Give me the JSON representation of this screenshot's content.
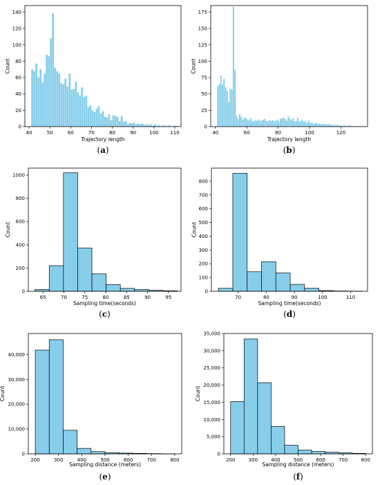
{
  "colors": {
    "bar_fill": "#87CEEB",
    "bar_edge_thin": "#5aaed6",
    "bar_edge": "#000000"
  },
  "chart_data": [
    {
      "id": "a",
      "type": "bar",
      "caption": "(a)",
      "xlabel": "Trajectory length",
      "ylabel": "Count",
      "xlim": [
        38,
        113
      ],
      "ylim": [
        0,
        148
      ],
      "xticks": [
        40,
        50,
        60,
        70,
        80,
        90,
        100,
        110
      ],
      "yticks": [
        0,
        20,
        40,
        60,
        80,
        100,
        120,
        140
      ],
      "bin_start": 41,
      "bin_width": 1,
      "values": [
        70,
        68,
        77,
        60,
        70,
        54,
        65,
        88,
        86,
        108,
        139,
        72,
        68,
        65,
        53,
        52,
        59,
        49,
        65,
        45,
        46,
        55,
        42,
        38,
        48,
        36,
        38,
        24,
        26,
        20,
        18,
        22,
        25,
        16,
        19,
        12,
        11,
        15,
        8,
        14,
        13,
        12,
        7,
        13,
        6,
        7,
        3,
        5,
        4,
        5,
        3,
        4,
        3,
        4,
        2,
        3,
        2,
        3,
        1,
        3,
        1,
        2,
        0,
        2,
        1,
        1,
        2,
        0,
        1,
        1
      ]
    },
    {
      "id": "b",
      "type": "bar",
      "caption": "(b)",
      "xlabel": "Trajectory length",
      "ylabel": "Count",
      "xlim": [
        37,
        137
      ],
      "ylim": [
        0,
        185
      ],
      "xticks": [
        40,
        60,
        80,
        100,
        120
      ],
      "yticks": [
        0,
        25,
        50,
        75,
        100,
        125,
        150,
        175
      ],
      "bin_start": 41,
      "bin_width": 1,
      "values": [
        62,
        65,
        78,
        65,
        73,
        60,
        55,
        38,
        58,
        57,
        183,
        87,
        17,
        12,
        19,
        15,
        11,
        14,
        13,
        11,
        10,
        13,
        9,
        8,
        10,
        9,
        11,
        9,
        10,
        11,
        12,
        9,
        8,
        10,
        9,
        10,
        8,
        9,
        11,
        8,
        12,
        13,
        14,
        12,
        9,
        16,
        12,
        10,
        13,
        8,
        9,
        14,
        8,
        9,
        10,
        7,
        8,
        6,
        9,
        5,
        7,
        4,
        5,
        6,
        4,
        5,
        3,
        5,
        4,
        4,
        3,
        4,
        3,
        2,
        3,
        2,
        3,
        2,
        2,
        1,
        2,
        2,
        1,
        1,
        2,
        1,
        1,
        1,
        0,
        1,
        1,
        1,
        0,
        1
      ]
    },
    {
      "id": "c",
      "type": "bar",
      "caption": "(c)",
      "xlabel": "Sampling time(seconds)",
      "ylabel": "Count",
      "xlim": [
        61.5,
        98
      ],
      "ylim": [
        0,
        1060
      ],
      "xticks": [
        65,
        70,
        75,
        80,
        85,
        90,
        95
      ],
      "yticks": [
        0,
        200,
        400,
        600,
        800,
        1000
      ],
      "bin_edges": [
        63.1,
        66.5,
        69.9,
        73.3,
        76.7,
        80.1,
        83.5,
        86.9,
        90.3,
        93.7,
        97.1
      ],
      "values": [
        15,
        220,
        1020,
        372,
        150,
        58,
        25,
        15,
        8,
        4
      ]
    },
    {
      "id": "d",
      "type": "bar",
      "caption": "(d)",
      "xlabel": "Sampling time(seconds)",
      "ylabel": "Count",
      "xlim": [
        60.5,
        116
      ],
      "ylim": [
        0,
        895
      ],
      "xticks": [
        70,
        80,
        90,
        100,
        110
      ],
      "yticks": [
        0,
        100,
        200,
        300,
        400,
        500,
        600,
        700,
        800
      ],
      "bin_edges": [
        63,
        68.1,
        73.2,
        78.3,
        83.4,
        88.5,
        93.6,
        98.7,
        103.8,
        108.9,
        114
      ],
      "values": [
        22,
        857,
        142,
        215,
        133,
        50,
        22,
        5,
        2,
        1
      ]
    },
    {
      "id": "e",
      "type": "bar",
      "caption": "(e)",
      "xlabel": "Sampling distance (meters)",
      "ylabel": "Count",
      "xlim": [
        170,
        830
      ],
      "ylim": [
        0,
        48500
      ],
      "xticks": [
        200,
        300,
        400,
        500,
        600,
        700,
        800
      ],
      "yticks": [
        0,
        10000,
        20000,
        30000,
        40000
      ],
      "ytick_labels": [
        "0",
        "10,000",
        "20,000",
        "30,000",
        "40,000"
      ],
      "bin_edges": [
        200,
        260,
        320,
        380,
        440,
        500,
        560,
        620,
        680,
        740,
        800
      ],
      "values": [
        41800,
        46000,
        9500,
        2200,
        900,
        500,
        300,
        200,
        100,
        50
      ]
    },
    {
      "id": "f",
      "type": "bar",
      "caption": "(f)",
      "xlabel": "Sampling distance (meters)",
      "ylabel": "Count",
      "xlim": [
        170,
        830
      ],
      "ylim": [
        0,
        35000
      ],
      "xticks": [
        200,
        300,
        400,
        500,
        600,
        700,
        800
      ],
      "yticks": [
        0,
        5000,
        10000,
        15000,
        20000,
        25000,
        30000,
        35000
      ],
      "ytick_labels": [
        "0",
        "5,000",
        "10,000",
        "15,000",
        "20,000",
        "25,000",
        "30,000",
        "35,000"
      ],
      "bin_edges": [
        200,
        260,
        320,
        380,
        440,
        500,
        560,
        620,
        680,
        740,
        800
      ],
      "values": [
        15200,
        33400,
        20700,
        8000,
        2500,
        1100,
        700,
        500,
        300,
        150
      ]
    }
  ]
}
